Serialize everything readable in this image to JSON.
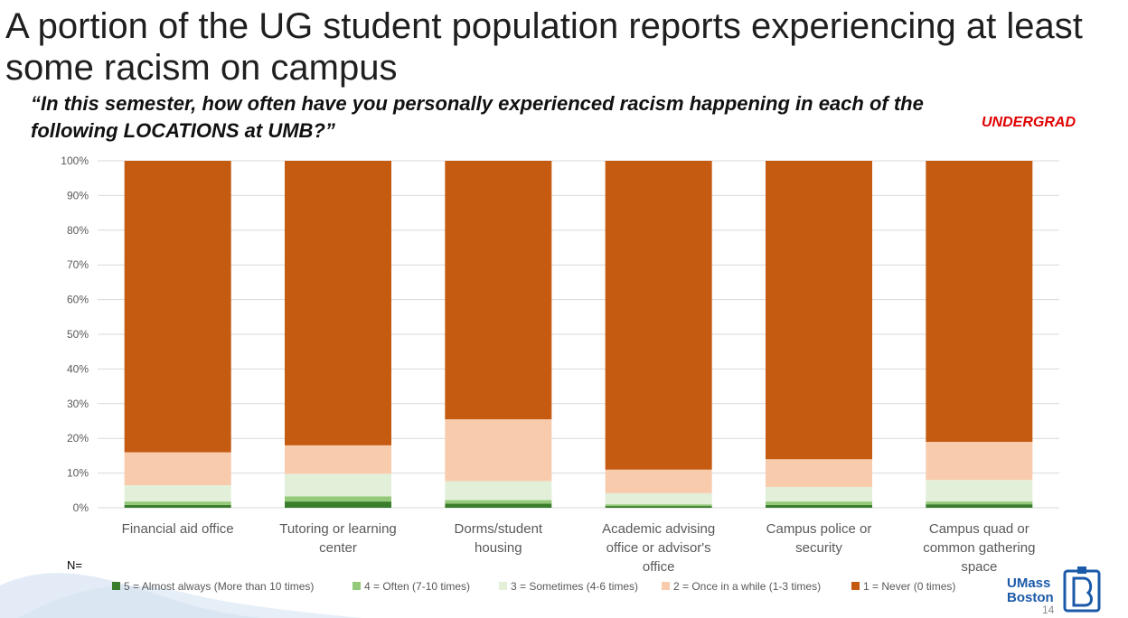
{
  "slide": {
    "title": "A portion of the UG student population reports experiencing at least some racism on campus",
    "question": "“In this semester, how often have you personally experienced racism happening in each of the following LOCATIONS at UMB?”",
    "tag": "UNDERGRAD",
    "n_label": "N=",
    "page_number": "14"
  },
  "logo": {
    "line1": "UMass",
    "line2": "Boston"
  },
  "colors": {
    "accent_red": "#e00000",
    "logo_blue": "#1b5aa8",
    "wave": "#e3ecf6"
  },
  "chart_data": {
    "type": "bar",
    "stacked": true,
    "percent": true,
    "categories": [
      [
        "Financial aid office"
      ],
      [
        "Tutoring or learning",
        "center"
      ],
      [
        "Dorms/student",
        "housing"
      ],
      [
        "Academic advising",
        "office or advisor's",
        "office"
      ],
      [
        "Campus police or",
        "security"
      ],
      [
        "Campus quad or",
        "common gathering",
        "space"
      ]
    ],
    "yticks": [
      "0%",
      "10%",
      "20%",
      "30%",
      "40%",
      "50%",
      "60%",
      "70%",
      "80%",
      "90%",
      "100%"
    ],
    "ylim": [
      0,
      100
    ],
    "grid": true,
    "legend_position": "bottom",
    "series": [
      {
        "name": "5 = Almost always (More than 10 times)",
        "color": "#3a7d2c",
        "values": [
          0.8,
          1.8,
          1.2,
          0.5,
          0.8,
          1.0
        ]
      },
      {
        "name": "4 = Often (7-10 times)",
        "color": "#94c97a",
        "values": [
          1.0,
          1.5,
          1.0,
          0.5,
          1.0,
          0.8
        ]
      },
      {
        "name": "3 = Sometimes (4-6 times)",
        "color": "#e2efd9",
        "values": [
          4.7,
          6.5,
          5.5,
          3.2,
          4.2,
          6.2
        ]
      },
      {
        "name": "2 = Once in a while (1-3 times)",
        "color": "#f8cbad",
        "values": [
          9.5,
          8.2,
          17.8,
          6.8,
          8.0,
          11.0
        ]
      },
      {
        "name": "1 = Never (0 times)",
        "color": "#c55a11",
        "values": [
          84.0,
          82.0,
          74.5,
          89.0,
          86.0,
          81.0
        ]
      }
    ]
  }
}
